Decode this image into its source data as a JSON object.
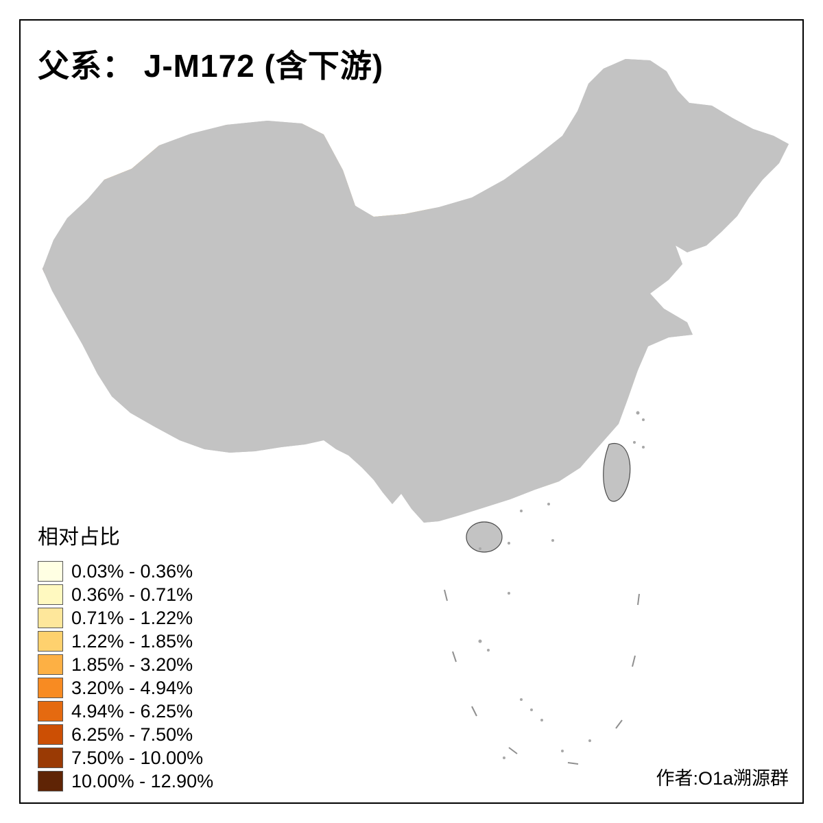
{
  "title": "父系： J-M172 (含下游)",
  "legend": {
    "title": "相对占比",
    "items": [
      {
        "label": "0.03% - 0.36%",
        "color": "#FFFFE3"
      },
      {
        "label": "0.36% - 0.71%",
        "color": "#FFF9C0"
      },
      {
        "label": "0.71% - 1.22%",
        "color": "#FEE79B"
      },
      {
        "label": "1.22% - 1.85%",
        "color": "#FED16E"
      },
      {
        "label": "1.85% - 3.20%",
        "color": "#FDB044"
      },
      {
        "label": "3.20% - 4.94%",
        "color": "#F88B22"
      },
      {
        "label": "4.94% - 6.25%",
        "color": "#E56A10"
      },
      {
        "label": "6.25% - 7.50%",
        "color": "#CC4F04"
      },
      {
        "label": "7.50% - 10.00%",
        "color": "#9A3A04"
      },
      {
        "label": "10.00% - 12.90%",
        "color": "#5F2405"
      }
    ]
  },
  "credit": "作者:O1a溯源群",
  "map": {
    "name": "china-prefecture-choropleth",
    "no_data_color": "#C3C3C3",
    "boundary_color": "#4A4A4A",
    "inner_boundary_color": "#8F8F8F"
  }
}
